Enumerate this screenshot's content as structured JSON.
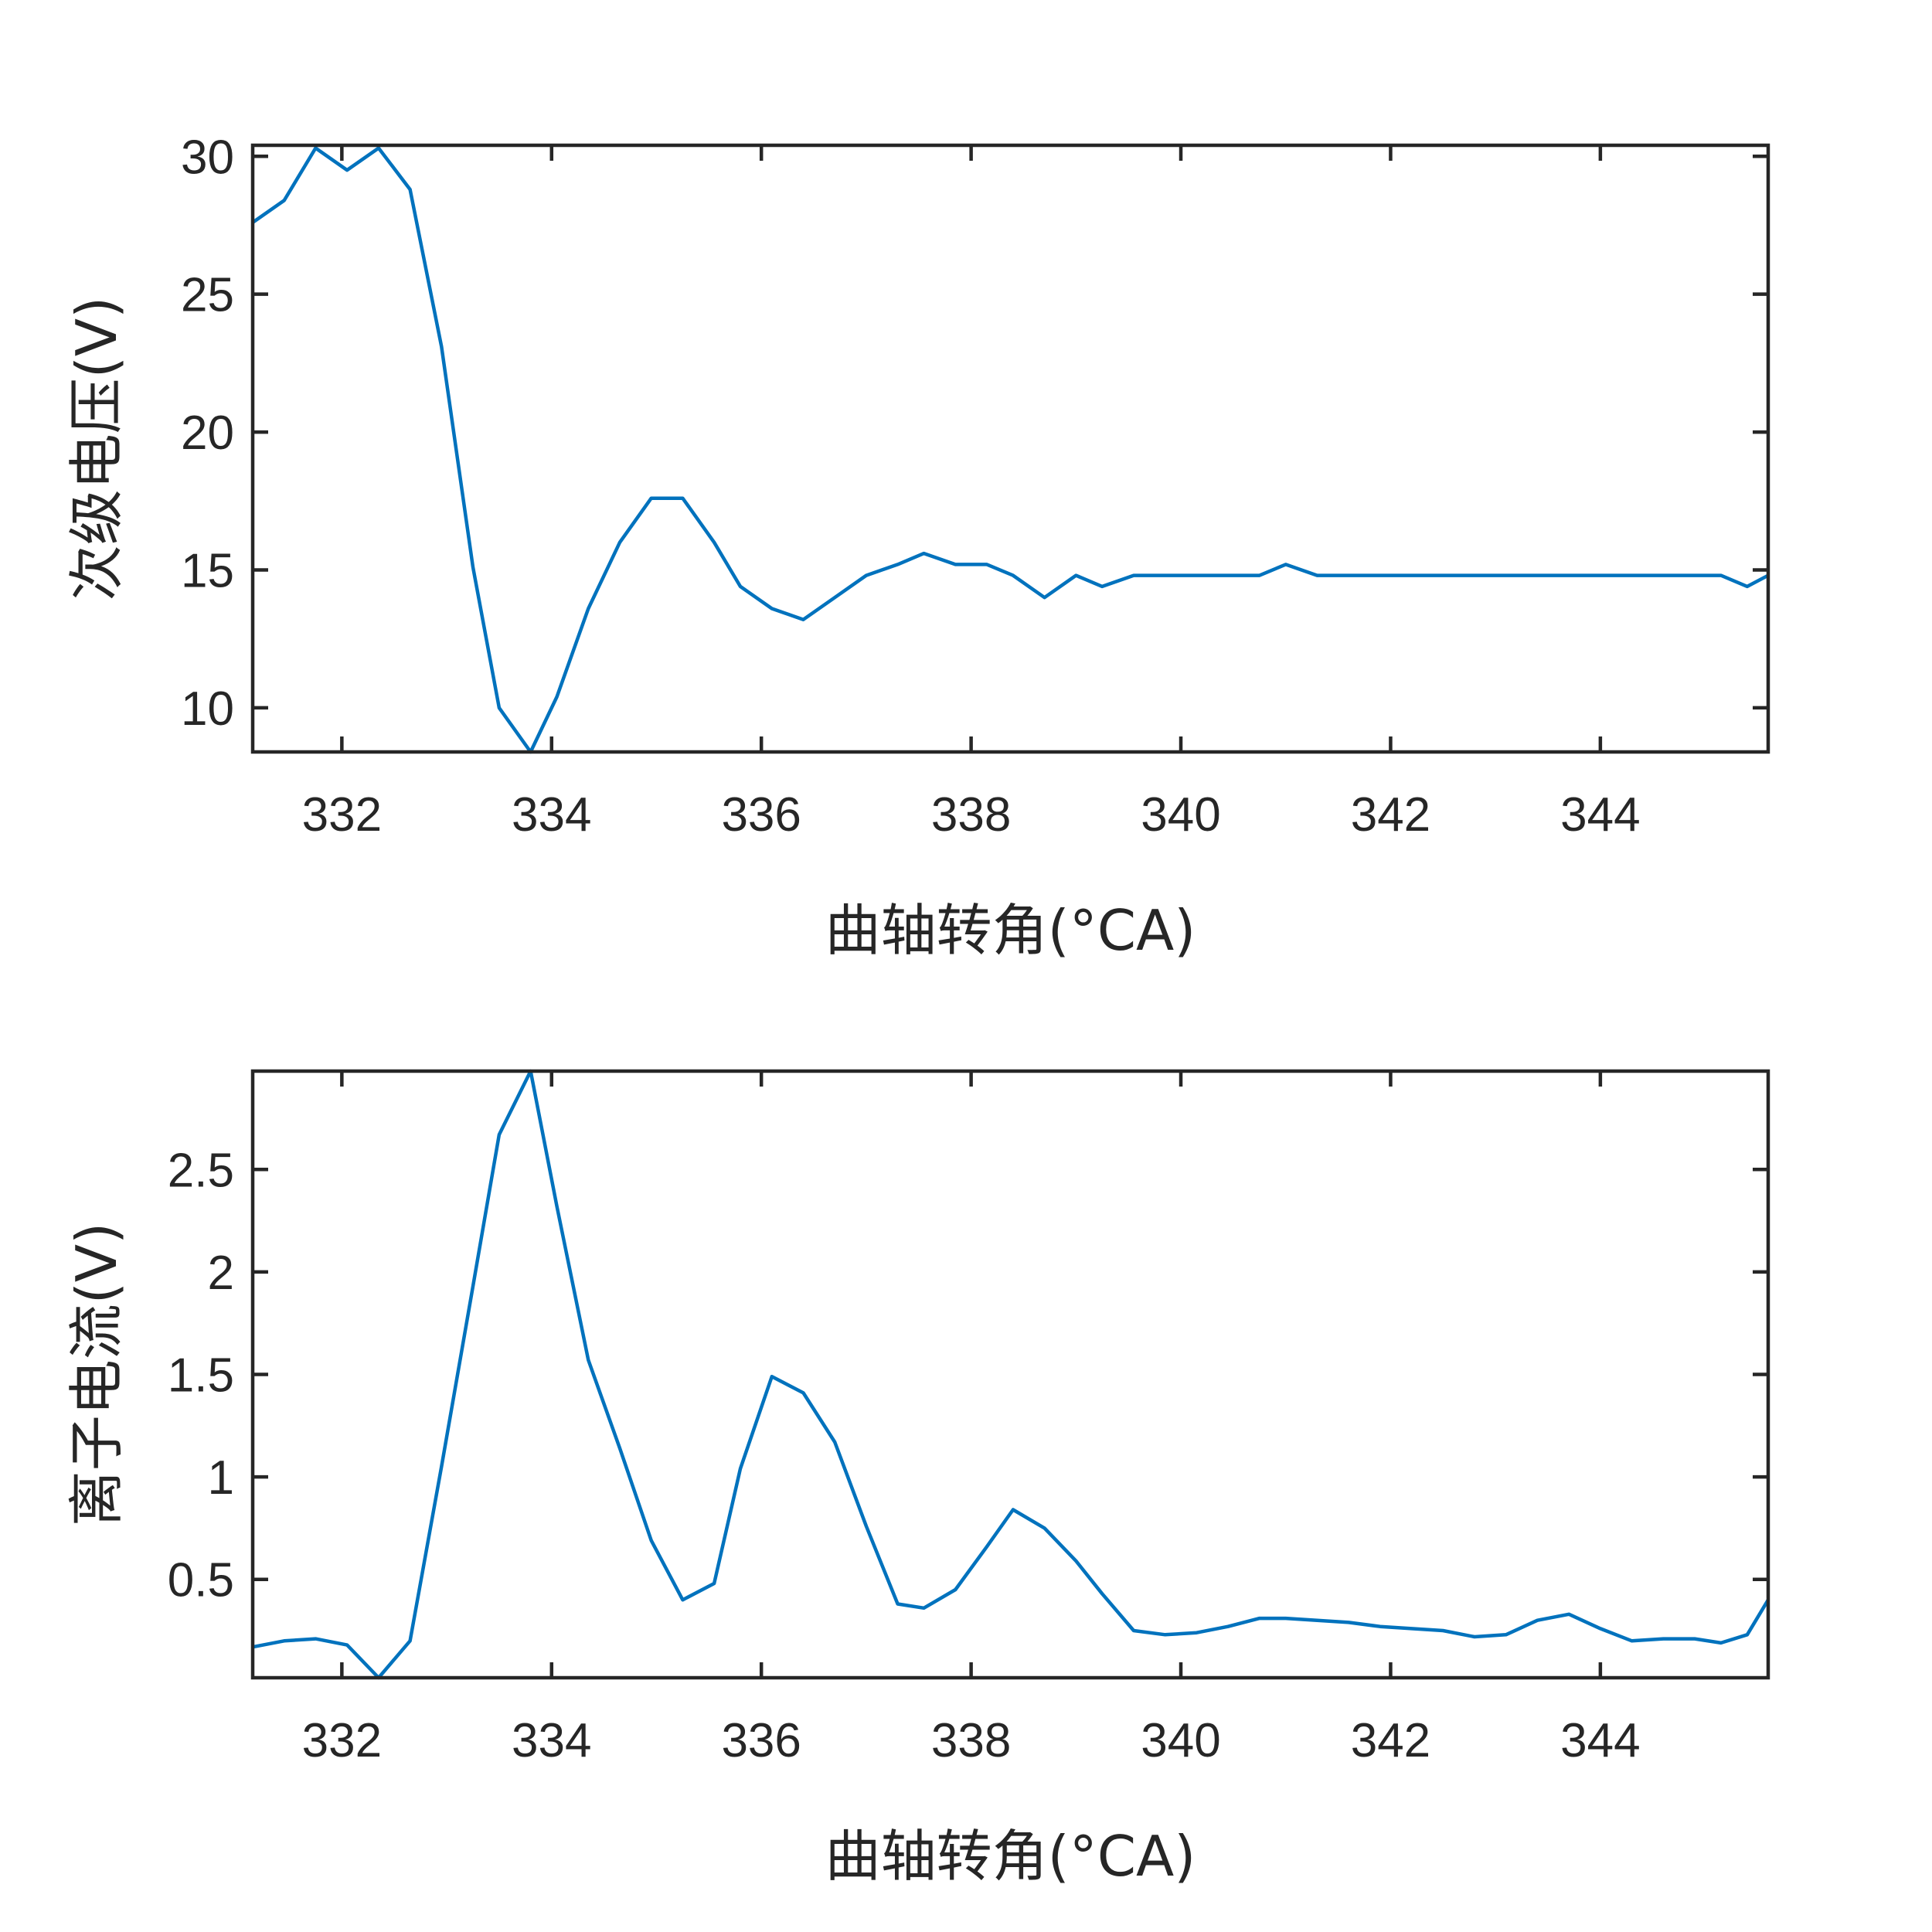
{
  "chart_data": [
    {
      "type": "line",
      "xlabel": "曲轴转角(°CA)",
      "ylabel": "次级电压(V)",
      "xlim": [
        331.15,
        345.6
      ],
      "ylim": [
        8.4,
        30.4
      ],
      "xticks": [
        "332",
        "334",
        "336",
        "338",
        "340",
        "342",
        "344"
      ],
      "yticks": [
        "10",
        "15",
        "20",
        "25",
        "30"
      ],
      "grid": false,
      "series": [
        {
          "x": [
            331.15,
            331.45,
            331.75,
            332.05,
            332.35,
            332.65,
            332.95,
            333.25,
            333.5,
            333.8,
            334.05,
            334.35,
            334.65,
            334.95,
            335.25,
            335.55,
            335.8,
            336.1,
            336.4,
            336.7,
            337.0,
            337.3,
            337.55,
            337.85,
            338.15,
            338.4,
            338.7,
            339.0,
            339.25,
            339.55,
            339.85,
            340.15,
            340.45,
            340.75,
            341.0,
            341.3,
            341.6,
            341.9,
            342.2,
            342.5,
            342.8,
            343.1,
            343.4,
            343.7,
            344.0,
            344.3,
            344.6,
            344.9,
            345.15,
            345.4,
            345.6
          ],
          "y": [
            27.6,
            28.4,
            30.3,
            29.5,
            30.3,
            28.8,
            23.1,
            15.1,
            10.0,
            8.4,
            10.4,
            13.6,
            16.0,
            17.6,
            17.6,
            16.0,
            14.4,
            13.6,
            13.2,
            14.0,
            14.8,
            15.2,
            15.6,
            15.2,
            15.2,
            14.8,
            14.0,
            14.8,
            14.4,
            14.8,
            14.8,
            14.8,
            14.8,
            14.8,
            15.2,
            14.8,
            14.8,
            14.8,
            14.8,
            14.8,
            14.8,
            14.8,
            14.8,
            14.8,
            14.8,
            14.8,
            14.8,
            14.8,
            14.8,
            14.4,
            14.8
          ]
        }
      ]
    },
    {
      "type": "line",
      "xlabel": "曲轴转角(°CA)",
      "ylabel": "离子电流(V)",
      "xlim": [
        331.15,
        345.6
      ],
      "ylim": [
        0.02,
        2.98
      ],
      "xticks": [
        "332",
        "334",
        "336",
        "338",
        "340",
        "342",
        "344"
      ],
      "yticks": [
        "0.5",
        "1",
        "1.5",
        "2",
        "2.5"
      ],
      "grid": false,
      "series": [
        {
          "x": [
            331.15,
            331.45,
            331.75,
            332.05,
            332.35,
            332.65,
            332.95,
            333.25,
            333.5,
            333.8,
            334.05,
            334.35,
            334.65,
            334.95,
            335.25,
            335.55,
            335.8,
            336.1,
            336.4,
            336.7,
            337.0,
            337.3,
            337.55,
            337.85,
            338.15,
            338.4,
            338.7,
            339.0,
            339.25,
            339.55,
            339.85,
            340.15,
            340.45,
            340.75,
            341.0,
            341.3,
            341.6,
            341.9,
            342.2,
            342.5,
            342.8,
            343.1,
            343.4,
            343.7,
            344.0,
            344.3,
            344.6,
            344.9,
            345.15,
            345.4,
            345.6
          ],
          "y": [
            0.17,
            0.2,
            0.21,
            0.18,
            0.02,
            0.2,
            1.05,
            1.93,
            2.67,
            2.98,
            2.32,
            1.57,
            1.14,
            0.69,
            0.4,
            0.48,
            1.04,
            1.49,
            1.41,
            1.17,
            0.76,
            0.38,
            0.36,
            0.45,
            0.66,
            0.84,
            0.75,
            0.59,
            0.43,
            0.25,
            0.23,
            0.24,
            0.27,
            0.31,
            0.31,
            0.3,
            0.29,
            0.27,
            0.26,
            0.25,
            0.22,
            0.23,
            0.3,
            0.33,
            0.26,
            0.2,
            0.21,
            0.21,
            0.19,
            0.23,
            0.4
          ]
        }
      ]
    }
  ]
}
